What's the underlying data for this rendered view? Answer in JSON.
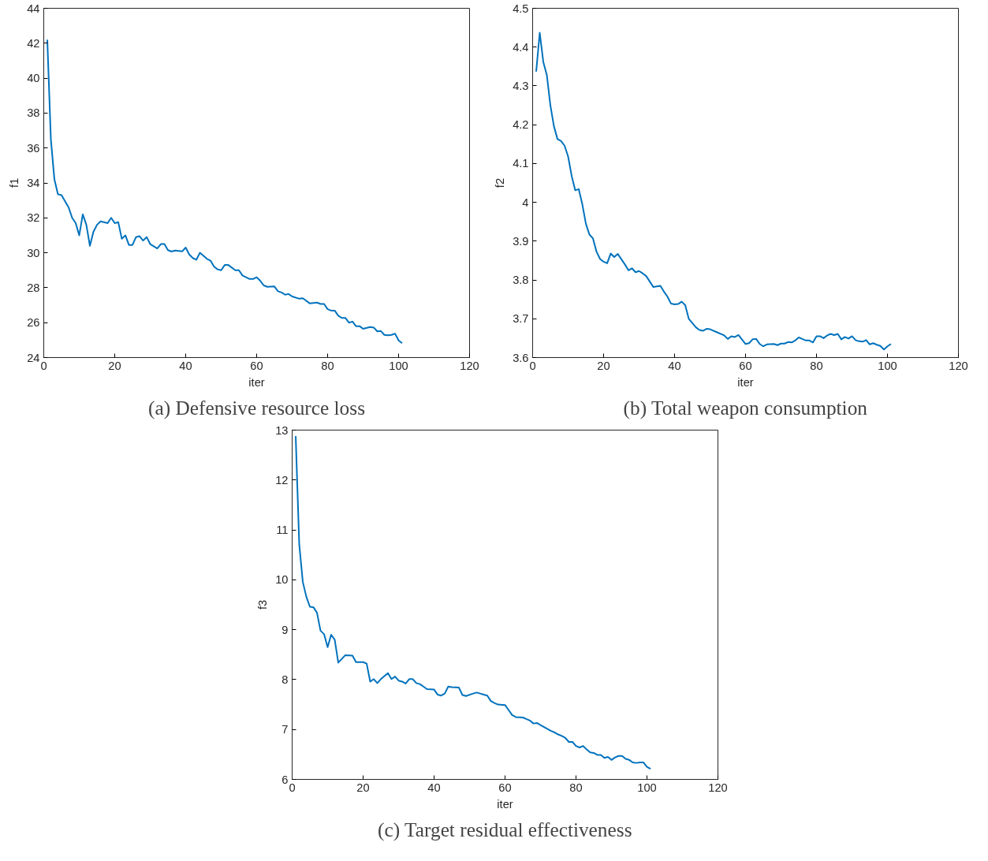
{
  "chart_data": [
    {
      "type": "line",
      "title": "(a) Defensive resource loss",
      "xlabel": "iter",
      "ylabel": "f1",
      "color": "#0072bd",
      "xlim": [
        0,
        120
      ],
      "xticks": [
        0,
        20,
        40,
        60,
        80,
        100,
        120
      ],
      "ylim": [
        24,
        44
      ],
      "yticks": [
        24,
        26,
        28,
        30,
        32,
        34,
        36,
        38,
        40,
        42,
        44
      ],
      "x": [
        1,
        2,
        3,
        4,
        5,
        7,
        8,
        9,
        10,
        11,
        12,
        13,
        14,
        15,
        16,
        18,
        19,
        20,
        21,
        22,
        23,
        24,
        25,
        26,
        27,
        28,
        29,
        30,
        32,
        33,
        34,
        35,
        36,
        37,
        39,
        40,
        41,
        42,
        43,
        44,
        46,
        47,
        48,
        49,
        50,
        51,
        52,
        54,
        55,
        56,
        57,
        58,
        59,
        60,
        61,
        62,
        63,
        65,
        66,
        67,
        68,
        69,
        70,
        72,
        73,
        75,
        77,
        78,
        79,
        80,
        81,
        82,
        83,
        84,
        85,
        86,
        87,
        88,
        89,
        90,
        92,
        93,
        94,
        95,
        96,
        97,
        98,
        99,
        100,
        101
      ],
      "values": [
        42.2,
        36.5,
        34.2,
        33.35,
        33.3,
        32.6,
        32.0,
        31.7,
        31.0,
        32.2,
        31.6,
        30.4,
        31.2,
        31.6,
        31.8,
        31.7,
        32.0,
        31.7,
        31.75,
        30.8,
        31.0,
        30.45,
        30.45,
        30.9,
        30.95,
        30.7,
        30.9,
        30.5,
        30.25,
        30.5,
        30.5,
        30.15,
        30.07,
        30.13,
        30.08,
        30.3,
        29.9,
        29.7,
        29.6,
        30.0,
        29.65,
        29.55,
        29.2,
        29.05,
        29.0,
        29.3,
        29.3,
        29.0,
        29.0,
        28.7,
        28.6,
        28.5,
        28.5,
        28.6,
        28.4,
        28.13,
        28.05,
        28.07,
        27.8,
        27.73,
        27.6,
        27.64,
        27.5,
        27.37,
        27.4,
        27.1,
        27.15,
        27.07,
        27.07,
        26.77,
        26.69,
        26.69,
        26.4,
        26.27,
        26.27,
        26.0,
        26.06,
        25.8,
        25.8,
        25.65,
        25.75,
        25.72,
        25.5,
        25.52,
        25.3,
        25.28,
        25.3,
        25.37,
        24.98,
        24.82
      ]
    },
    {
      "type": "line",
      "title": "(b) Total weapon consumption",
      "xlabel": "iter",
      "ylabel": "f2",
      "color": "#0072bd",
      "xlim": [
        0,
        120
      ],
      "xticks": [
        0,
        20,
        40,
        60,
        80,
        100,
        120
      ],
      "ylim": [
        3.6,
        4.5
      ],
      "yticks": [
        3.6,
        3.7,
        3.8,
        3.9,
        4,
        4.1,
        4.2,
        4.3,
        4.4,
        4.5
      ],
      "x": [
        1,
        2,
        3,
        4,
        5,
        6,
        7,
        8,
        9,
        10,
        11,
        12,
        13,
        14,
        15,
        16,
        17,
        18,
        19,
        20,
        21,
        22,
        23,
        24,
        26,
        27,
        28,
        29,
        30,
        31,
        32,
        34,
        36,
        37,
        38,
        39,
        40,
        41,
        42,
        43,
        44,
        45,
        46,
        47,
        48,
        49,
        50,
        52,
        54,
        55,
        56,
        57,
        58,
        60,
        61,
        62,
        63,
        64,
        65,
        66,
        68,
        69,
        70,
        71,
        72,
        73,
        74,
        75,
        77,
        78,
        79,
        80,
        81,
        82,
        83,
        84,
        85,
        86,
        87,
        88,
        89,
        90,
        91,
        92,
        93,
        94,
        95,
        96,
        97,
        98,
        99,
        100,
        101
      ],
      "values": [
        4.337,
        4.437,
        4.362,
        4.328,
        4.25,
        4.196,
        4.163,
        4.158,
        4.146,
        4.118,
        4.068,
        4.031,
        4.034,
        3.995,
        3.945,
        3.917,
        3.907,
        3.873,
        3.854,
        3.847,
        3.843,
        3.868,
        3.859,
        3.867,
        3.84,
        3.825,
        3.83,
        3.82,
        3.823,
        3.817,
        3.81,
        3.782,
        3.785,
        3.77,
        3.757,
        3.739,
        3.737,
        3.738,
        3.744,
        3.735,
        3.7,
        3.689,
        3.678,
        3.671,
        3.669,
        3.674,
        3.673,
        3.665,
        3.657,
        3.648,
        3.655,
        3.653,
        3.658,
        3.635,
        3.637,
        3.647,
        3.648,
        3.635,
        3.629,
        3.634,
        3.635,
        3.632,
        3.636,
        3.636,
        3.64,
        3.639,
        3.644,
        3.652,
        3.644,
        3.644,
        3.639,
        3.655,
        3.655,
        3.65,
        3.657,
        3.661,
        3.658,
        3.661,
        3.647,
        3.653,
        3.649,
        3.655,
        3.645,
        3.642,
        3.641,
        3.645,
        3.634,
        3.637,
        3.633,
        3.63,
        3.621,
        3.629,
        3.635
      ]
    },
    {
      "type": "line",
      "title": "(c) Target residual effectiveness",
      "xlabel": "iter",
      "ylabel": "f3",
      "color": "#0072bd",
      "xlim": [
        0,
        120
      ],
      "xticks": [
        0,
        20,
        40,
        60,
        80,
        100,
        120
      ],
      "ylim": [
        6,
        13
      ],
      "yticks": [
        6,
        7,
        8,
        9,
        10,
        11,
        12,
        13
      ],
      "x": [
        1,
        2,
        3,
        4,
        5,
        6,
        7,
        8,
        9,
        10,
        11,
        12,
        13,
        15,
        17,
        18,
        20,
        21,
        22,
        23,
        24,
        25,
        27,
        28,
        29,
        30,
        31,
        32,
        33,
        34,
        35,
        36,
        37,
        38,
        40,
        41,
        42,
        43,
        44,
        45,
        47,
        48,
        49,
        51,
        52,
        53,
        54,
        55,
        56,
        57,
        58,
        60,
        61,
        62,
        63,
        65,
        66,
        67,
        68,
        69,
        70,
        71,
        72,
        73,
        74,
        75,
        76,
        77,
        78,
        79,
        80,
        81,
        82,
        83,
        84,
        85,
        86,
        87,
        88,
        89,
        90,
        91,
        92,
        93,
        94,
        95,
        96,
        97,
        98,
        99,
        100,
        101
      ],
      "values": [
        12.88,
        10.71,
        9.96,
        9.66,
        9.46,
        9.45,
        9.34,
        8.98,
        8.91,
        8.65,
        8.9,
        8.8,
        8.34,
        8.49,
        8.48,
        8.35,
        8.35,
        8.32,
        7.96,
        8.01,
        7.93,
        8.01,
        8.13,
        8.01,
        8.06,
        7.98,
        7.96,
        7.92,
        8.01,
        8.01,
        7.93,
        7.91,
        7.86,
        7.81,
        7.8,
        7.7,
        7.68,
        7.72,
        7.86,
        7.85,
        7.84,
        7.69,
        7.67,
        7.72,
        7.74,
        7.72,
        7.7,
        7.68,
        7.57,
        7.53,
        7.5,
        7.49,
        7.39,
        7.29,
        7.25,
        7.24,
        7.21,
        7.18,
        7.12,
        7.13,
        7.09,
        7.05,
        7.01,
        6.97,
        6.94,
        6.9,
        6.87,
        6.83,
        6.75,
        6.75,
        6.67,
        6.64,
        6.67,
        6.6,
        6.54,
        6.53,
        6.49,
        6.49,
        6.43,
        6.45,
        6.39,
        6.44,
        6.47,
        6.47,
        6.41,
        6.39,
        6.34,
        6.33,
        6.34,
        6.34,
        6.25,
        6.21
      ]
    }
  ]
}
